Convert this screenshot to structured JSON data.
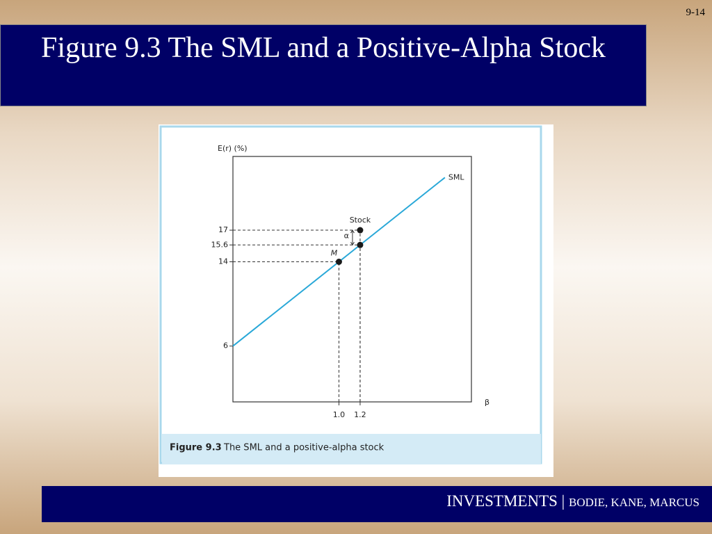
{
  "slide": {
    "page_number": "9-14",
    "title": "Figure 9.3 The SML and a Positive-Alpha Stock",
    "footer_main": "INVESTMENTS | ",
    "footer_authors": "BODIE, KANE, MARCUS"
  },
  "chart_data": {
    "type": "line",
    "caption_label": "Figure 9.3",
    "caption_text": "The SML and a positive-alpha stock",
    "y_label": "E(r) (%)",
    "x_label": "β",
    "annotations": {
      "sml": "SML",
      "stock": "Stock",
      "market": "M",
      "alpha": "α"
    },
    "xlim": [
      0,
      2.25
    ],
    "ylim": [
      0.7,
      24
    ],
    "xticks": [
      {
        "value": 1,
        "label": "1.0"
      },
      1.2
    ],
    "yticks": [
      6,
      14,
      15.6,
      17
    ],
    "series": [
      {
        "name": "SML",
        "type": "line",
        "color": "#29a8d8",
        "x": [
          0,
          2
        ],
        "values": [
          6,
          22
        ]
      },
      {
        "type": "scatter",
        "color": "#1a1a1a",
        "x": [
          1,
          1.2,
          1.2
        ],
        "values": [
          14,
          15.6,
          17
        ]
      }
    ]
  }
}
